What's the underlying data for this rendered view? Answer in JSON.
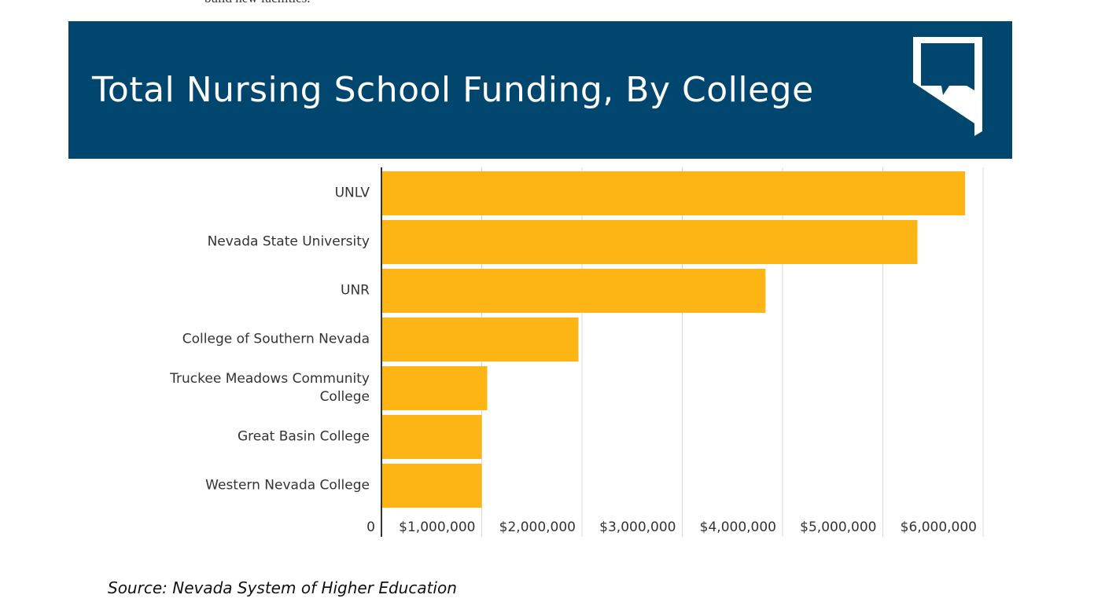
{
  "context_text": "build new facilities.",
  "chart_data": {
    "type": "bar",
    "orientation": "horizontal",
    "title": "Total Nursing School Funding, By College",
    "source": "Source: Nevada System of Higher Education",
    "categories": [
      "UNLV",
      "Nevada State University",
      "UNR",
      "College of Southern Nevada",
      "Truckee Meadows Community College",
      "Great Basin College",
      "Western Nevada College"
    ],
    "values": [
      5820000,
      5345000,
      3830000,
      1965000,
      1055000,
      1000000,
      1000000
    ],
    "color": "#fdb515",
    "xlim": [
      0,
      6000000
    ],
    "xticks": [
      0,
      {
        "value": 1000000,
        "label": "$1,000,000"
      },
      {
        "value": 2000000,
        "label": "$2,000,000"
      },
      {
        "value": 3000000,
        "label": "$3,000,000"
      },
      {
        "value": 4000000,
        "label": "$4,000,000"
      },
      {
        "value": 5000000,
        "label": "$5,000,000"
      },
      {
        "value": 6000000,
        "label": "$6,000,000"
      }
    ],
    "grid": true
  }
}
